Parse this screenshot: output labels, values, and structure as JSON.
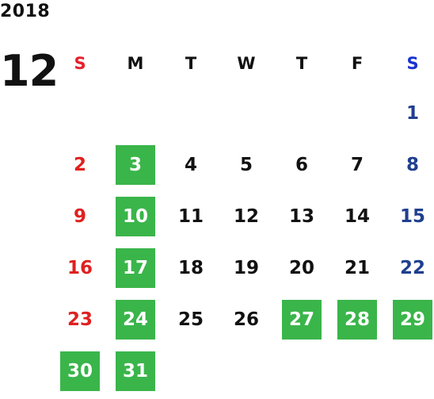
{
  "year": "2018",
  "month": "12",
  "weekdays": [
    "S",
    "M",
    "T",
    "W",
    "T",
    "F",
    "S"
  ],
  "weeks": [
    [
      "",
      "",
      "",
      "",
      "",
      "",
      "1"
    ],
    [
      "2",
      "3",
      "4",
      "5",
      "6",
      "7",
      "8"
    ],
    [
      "9",
      "10",
      "11",
      "12",
      "13",
      "14",
      "15"
    ],
    [
      "16",
      "17",
      "18",
      "19",
      "20",
      "21",
      "22"
    ],
    [
      "23",
      "24",
      "25",
      "26",
      "27",
      "28",
      "29"
    ],
    [
      "30",
      "31",
      "",
      "",
      "",
      "",
      ""
    ]
  ],
  "highlighted_days": [
    "3",
    "10",
    "17",
    "24",
    "27",
    "28",
    "29",
    "30",
    "31"
  ],
  "colors": {
    "highlight": "#3ab54a",
    "sunday": "#e02020",
    "saturday": "#1f3f8f",
    "sunday_header": "#e8202a",
    "saturday_header": "#1a33d0",
    "weekday": "#111111"
  }
}
